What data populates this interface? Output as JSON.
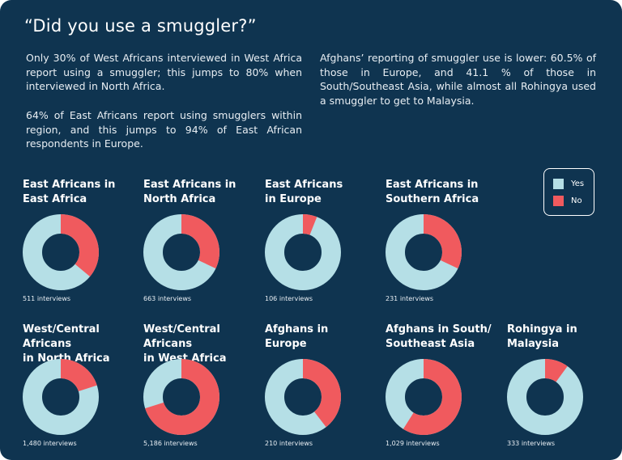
{
  "title": "“Did you use a smuggler?”",
  "paragraphs": [
    "Only 30% of West Africans interviewed in West Africa report using a smuggler; this jumps to 80% when interviewed in North Africa.",
    "64% of East Africans report using smugglers within region, and this jumps to 94% of East African respondents in Europe.",
    "Afghans’ reporting of smuggler use is lower: 60.5% of those in Europe, and 41.1 % of those in South/Southeast Asia, while almost all Rohingya used a smuggler to get to Malaysia."
  ],
  "colors": {
    "background": "#0f3450",
    "yes": "#b5dfe6",
    "no": "#f05a5e"
  },
  "legend": {
    "yes": "Yes",
    "no": "No"
  },
  "chart_data": [
    {
      "type": "pie",
      "title": "East Africans in\nEast Africa",
      "categories": [
        "Yes",
        "No"
      ],
      "values": [
        64,
        36
      ],
      "note": "511 interviews"
    },
    {
      "type": "pie",
      "title": "East Africans in\nNorth Africa",
      "categories": [
        "Yes",
        "No"
      ],
      "values": [
        68,
        32
      ],
      "note": "663 interviews"
    },
    {
      "type": "pie",
      "title": "East Africans\nin Europe",
      "categories": [
        "Yes",
        "No"
      ],
      "values": [
        94,
        6
      ],
      "note": "106 interviews"
    },
    {
      "type": "pie",
      "title": "East Africans in\nSouthern Africa",
      "categories": [
        "Yes",
        "No"
      ],
      "values": [
        68,
        32
      ],
      "note": "231 interviews"
    },
    {
      "type": "pie",
      "title": "West/Central Africans\nin North Africa",
      "categories": [
        "Yes",
        "No"
      ],
      "values": [
        80,
        20
      ],
      "note": "1,480 interviews"
    },
    {
      "type": "pie",
      "title": "West/Central Africans\nin West Africa",
      "categories": [
        "Yes",
        "No"
      ],
      "values": [
        30,
        70
      ],
      "note": "5,186 interviews"
    },
    {
      "type": "pie",
      "title": "Afghans in\nEurope",
      "categories": [
        "Yes",
        "No"
      ],
      "values": [
        60.5,
        39.5
      ],
      "note": "210 interviews"
    },
    {
      "type": "pie",
      "title": "Afghans in South/\nSoutheast Asia",
      "categories": [
        "Yes",
        "No"
      ],
      "values": [
        41.1,
        58.9
      ],
      "note": "1,029 interviews"
    },
    {
      "type": "pie",
      "title": "Rohingya in\nMalaysia",
      "categories": [
        "Yes",
        "No"
      ],
      "values": [
        90,
        10
      ],
      "note": "333 interviews"
    }
  ]
}
